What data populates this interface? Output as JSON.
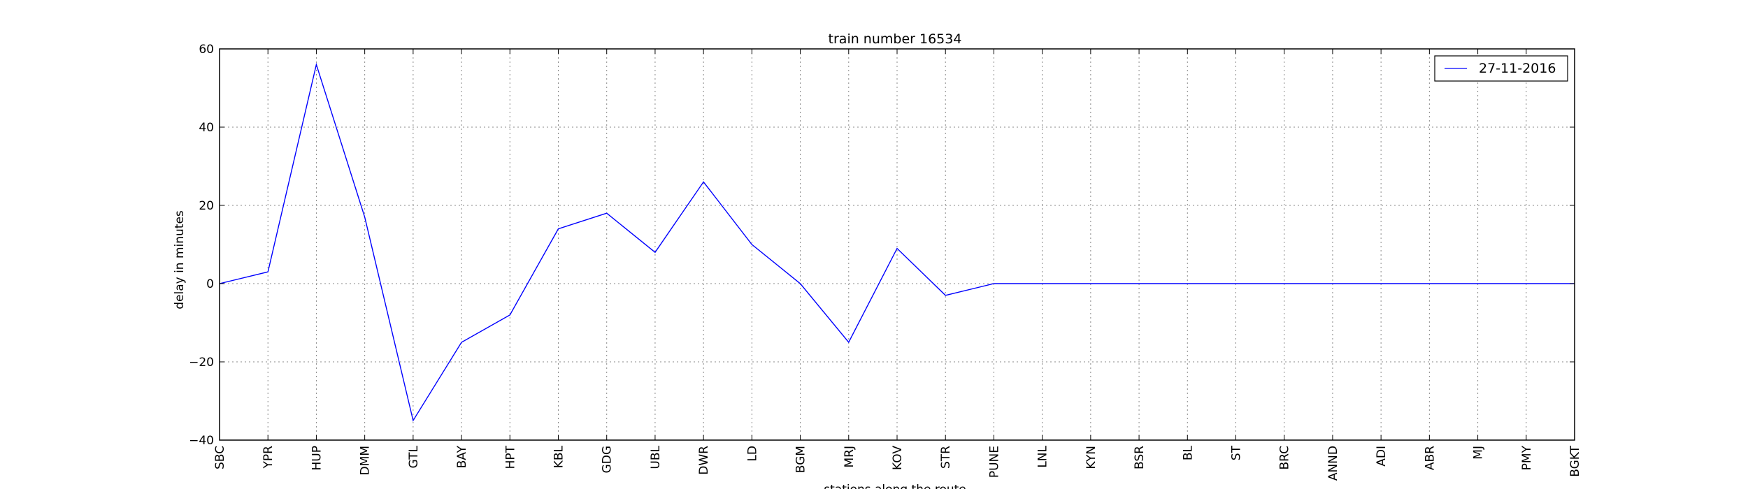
{
  "chart_data": {
    "type": "line",
    "title": "train number 16534",
    "xlabel": "stations along the route",
    "ylabel": "delay in minutes",
    "categories": [
      "SBC",
      "YPR",
      "HUP",
      "DMM",
      "GTL",
      "BAY",
      "HPT",
      "KBL",
      "GDG",
      "UBL",
      "DWR",
      "LD",
      "BGM",
      "MRJ",
      "KOV",
      "STR",
      "PUNE",
      "LNL",
      "KYN",
      "BSR",
      "BL",
      "ST",
      "BRC",
      "ANND",
      "ADI",
      "ABR",
      "MJ",
      "PMY",
      "BGKT"
    ],
    "series": [
      {
        "name": "27-11-2016",
        "color": "#0000ff",
        "values": [
          0,
          3,
          56,
          17,
          -35,
          -15,
          -8,
          14,
          18,
          8,
          26,
          10,
          0,
          -15,
          9,
          -3,
          0,
          0,
          0,
          0,
          0,
          0,
          0,
          0,
          0,
          0,
          0,
          0,
          0
        ]
      }
    ],
    "ylim": [
      -40,
      60
    ],
    "yticks": [
      -40,
      -20,
      0,
      20,
      40,
      60
    ],
    "ytick_labels": [
      "−40",
      "−20",
      "0",
      "20",
      "40",
      "60"
    ],
    "grid": true,
    "legend": "top-right"
  }
}
